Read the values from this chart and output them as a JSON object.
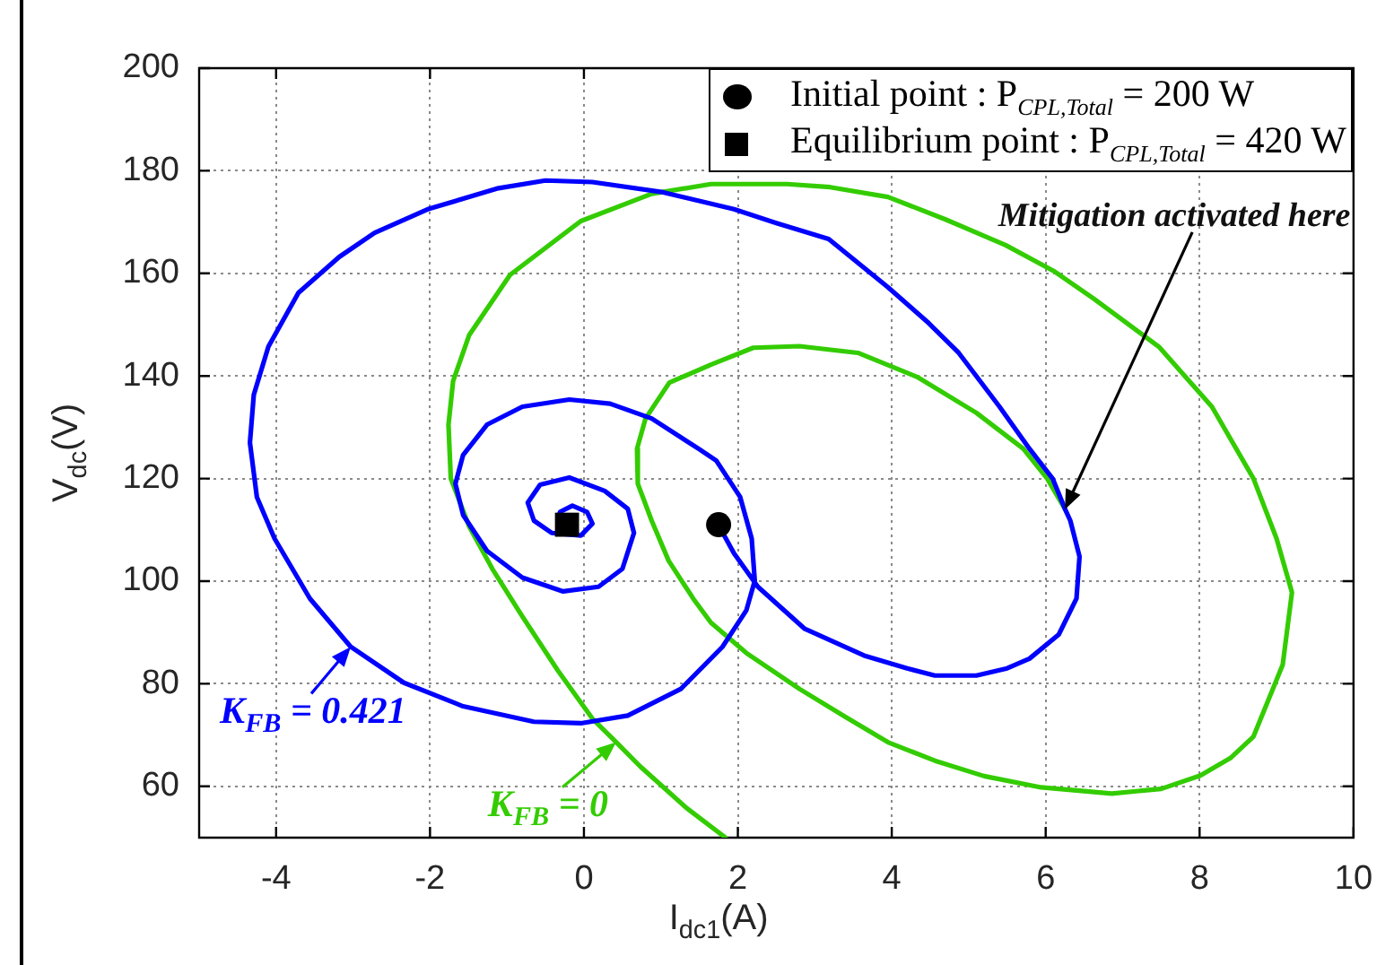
{
  "chart_data": {
    "type": "line",
    "xlabel": "I$_{dc1}$(A)",
    "ylabel": "V$_{dc}$(V)",
    "xlim": [
      -5,
      10
    ],
    "xticks": [
      -4,
      -2,
      0,
      2,
      4,
      6,
      8,
      10
    ],
    "ylim": [
      50,
      200
    ],
    "yticks": [
      60,
      80,
      100,
      120,
      140,
      160,
      180,
      200
    ],
    "grid": true,
    "legend": "top right",
    "annotations": [
      {
        "text": "Mitigation activated here",
        "x": 6.25,
        "y": 114
      }
    ],
    "series": [
      {
        "name": "K$_{FB}$ = 0.421",
        "type": "line",
        "color": "#0000ff",
        "x": [
          1.76,
          1.95,
          2.26,
          2.87,
          3.64,
          4.2,
          4.56,
          5.1,
          5.5,
          5.79,
          6.17,
          6.4,
          6.44,
          6.32,
          6.25,
          6.09,
          5.79,
          5.4,
          4.87,
          4.48,
          3.95,
          3.18,
          2.5,
          1.95,
          1.03,
          0.11,
          -0.5,
          -1.11,
          -2.03,
          -2.72,
          -3.18,
          -3.71,
          -4.1,
          -4.29,
          -4.34,
          -4.25,
          -4.02,
          -3.56,
          -3.03,
          -2.34,
          -1.57,
          -0.65,
          -0.04,
          0.57,
          1.26,
          1.8,
          2.11,
          2.22,
          2.18,
          2.03,
          1.72,
          1.49,
          0.88,
          0.34,
          -0.19,
          -0.8,
          -1.26,
          -1.57,
          -1.67,
          -1.57,
          -1.26,
          -0.8,
          -0.27,
          0.19,
          0.5,
          0.65,
          0.57,
          0.27,
          -0.19,
          -0.57,
          -0.73,
          -0.65,
          -0.42,
          -0.04,
          0.11,
          0.04,
          -0.15,
          -0.31,
          -0.34,
          -0.22
        ],
        "values": [
          110.6,
          105.4,
          98.9,
          90.7,
          85.5,
          83,
          81.6,
          81.6,
          83,
          84.9,
          89.6,
          96.6,
          104.8,
          111.8,
          114.1,
          120,
          125.8,
          134,
          144.5,
          150.3,
          157.3,
          166.7,
          169.8,
          172.5,
          175.8,
          177.8,
          178.1,
          176.6,
          172.5,
          167.9,
          163.2,
          156.2,
          145.7,
          136.3,
          127,
          116.4,
          108.3,
          96.6,
          87.2,
          80.2,
          75.6,
          72.6,
          72.3,
          73.8,
          79,
          87.2,
          94.3,
          100.1,
          108.3,
          116.4,
          123.5,
          125.8,
          131.7,
          134.6,
          135.4,
          134,
          130.5,
          124.6,
          119,
          112.9,
          105.9,
          100.7,
          98,
          98.9,
          102.4,
          109.4,
          114.1,
          117.6,
          120.2,
          118.8,
          115.3,
          111.8,
          109.4,
          108.9,
          111.2,
          113.5,
          114.7,
          113.5,
          111.8,
          111.1
        ]
      },
      {
        "name": "K$_{FB}$ = 0",
        "type": "line",
        "color": "#33cc00",
        "x": [
          6.25,
          6.02,
          5.71,
          5.1,
          4.33,
          3.56,
          2.8,
          2.2,
          1.65,
          1.11,
          0.8,
          0.69,
          0.7,
          0.88,
          1.1,
          1.42,
          1.65,
          2.11,
          2.8,
          3.4,
          3.95,
          4.56,
          5.2,
          5.94,
          6.86,
          7.5,
          8.01,
          8.4,
          8.7,
          9.08,
          9.2,
          9,
          8.7,
          8.16,
          7.47,
          6.63,
          6.1,
          5.48,
          4.7,
          3.95,
          3.2,
          2.64,
          1.65,
          0.88,
          -0.04,
          -0.96,
          -1.49,
          -1.7,
          -1.76,
          -1.73,
          -1.49,
          -1.19,
          -0.8,
          -0.34,
          0.11,
          0.42,
          0.73,
          1.34,
          1.84
        ],
        "values": [
          114.1,
          120,
          125.8,
          132.8,
          139.8,
          144.5,
          145.8,
          145.5,
          142.2,
          138.7,
          131.7,
          125.8,
          119,
          111.8,
          104,
          96.6,
          91.9,
          86,
          79,
          73.5,
          68.6,
          65,
          62,
          59.8,
          58.6,
          59.5,
          62.1,
          65.5,
          69.7,
          83.7,
          97.8,
          108.3,
          120,
          134,
          145.7,
          155,
          160.5,
          165.5,
          170.5,
          174.9,
          176.8,
          177.4,
          177.4,
          175.5,
          170.2,
          159.7,
          148,
          139,
          130.5,
          120,
          110.6,
          102.4,
          93.1,
          82.6,
          73.2,
          68.6,
          63.9,
          55.7,
          50
        ]
      },
      {
        "name": "Initial point : P$_{CPL,Total}$ = 200 W",
        "type": "scatter",
        "marker": "circle",
        "color": "#000000",
        "x": [
          1.75
        ],
        "values": [
          111
        ]
      },
      {
        "name": "Equilibrium point : P$_{CPL,Total}$ = 420 W",
        "type": "scatter",
        "marker": "square",
        "color": "#000000",
        "x": [
          -0.22
        ],
        "values": [
          111
        ]
      }
    ]
  }
}
